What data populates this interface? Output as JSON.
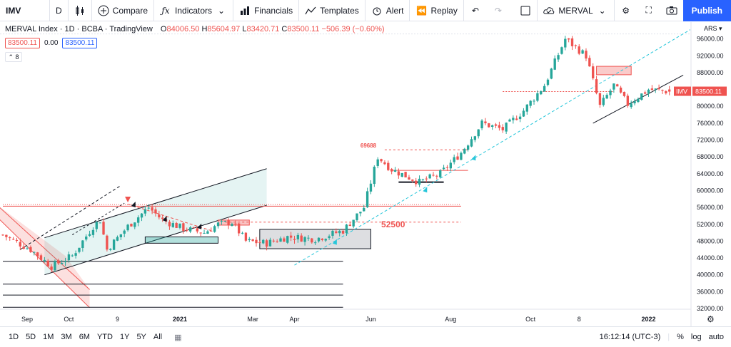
{
  "toolbar": {
    "symbol": "IMV",
    "interval": "D",
    "compare": "Compare",
    "indicators": "Indicators",
    "financials": "Financials",
    "templates": "Templates",
    "alert": "Alert",
    "replay": "Replay",
    "layout_name": "MERVAL",
    "publish": "Publish"
  },
  "legend": {
    "title": "MERVAL Index · 1D · BCBA · TradingView",
    "o": "84006.50",
    "h": "85604.97",
    "l": "83420.71",
    "c": "83500.11",
    "change": "−506.39 (−0.60%)",
    "sell": "83500.11",
    "spread": "0.00",
    "buy": "83500.11",
    "indicator_count": "8"
  },
  "bottombar": {
    "ranges": [
      "1D",
      "5D",
      "1M",
      "3M",
      "6M",
      "YTD",
      "1Y",
      "5Y",
      "All"
    ],
    "time": "16:12:14 (UTC-3)",
    "percent": "%",
    "log": "log",
    "auto": "auto"
  },
  "colors": {
    "up": "#26a69a",
    "down": "#ef5350",
    "accent": "#2962ff",
    "trend": "#26c6da"
  },
  "chart_data": {
    "type": "candlestick",
    "currency": "ARS",
    "ylim": [
      32000,
      100000
    ],
    "y_ticks": [
      96000,
      92000,
      88000,
      84000,
      80000,
      76000,
      72000,
      68000,
      64000,
      60000,
      56000,
      52000,
      48000,
      44000,
      40000,
      36000,
      32000
    ],
    "x_ticks": [
      {
        "label": "Sep",
        "i": 7
      },
      {
        "label": "Oct",
        "i": 19
      },
      {
        "label": "9",
        "i": 33
      },
      {
        "label": "2021",
        "i": 51
      },
      {
        "label": "Mar",
        "i": 72
      },
      {
        "label": "Apr",
        "i": 84
      },
      {
        "label": "Jun",
        "i": 106
      },
      {
        "label": "Aug",
        "i": 129
      },
      {
        "label": "Oct",
        "i": 152
      },
      {
        "label": "8",
        "i": 166
      },
      {
        "label": "2022",
        "i": 186
      }
    ],
    "n_bars": 198,
    "last_price": 83500.11,
    "ohlc": {
      "open": 84006.5,
      "high": 85604.97,
      "low": 83420.71,
      "close": 83500.11
    },
    "path": [
      [
        0,
        49500
      ],
      [
        8,
        46000
      ],
      [
        14,
        42000
      ],
      [
        20,
        44500
      ],
      [
        26,
        51500
      ],
      [
        28,
        53000
      ],
      [
        30,
        46000
      ],
      [
        36,
        51500
      ],
      [
        42,
        56000
      ],
      [
        46,
        53000
      ],
      [
        52,
        51000
      ],
      [
        58,
        50000
      ],
      [
        62,
        52000
      ],
      [
        66,
        52500
      ],
      [
        70,
        48000
      ],
      [
        76,
        47500
      ],
      [
        82,
        49000
      ],
      [
        90,
        48500
      ],
      [
        98,
        50500
      ],
      [
        104,
        56000
      ],
      [
        108,
        68000
      ],
      [
        112,
        65000
      ],
      [
        120,
        62000
      ],
      [
        126,
        64000
      ],
      [
        132,
        69000
      ],
      [
        138,
        76000
      ],
      [
        144,
        74500
      ],
      [
        150,
        79000
      ],
      [
        156,
        85000
      ],
      [
        162,
        96000
      ],
      [
        168,
        92000
      ],
      [
        172,
        80000
      ],
      [
        176,
        85000
      ],
      [
        180,
        80500
      ],
      [
        186,
        84000
      ],
      [
        192,
        83500
      ]
    ],
    "annotations": {
      "levels": [
        {
          "label": "52500",
          "price": 52500
        },
        {
          "label": "69688",
          "price": 69688
        }
      ],
      "price_label": "IMV"
    }
  }
}
